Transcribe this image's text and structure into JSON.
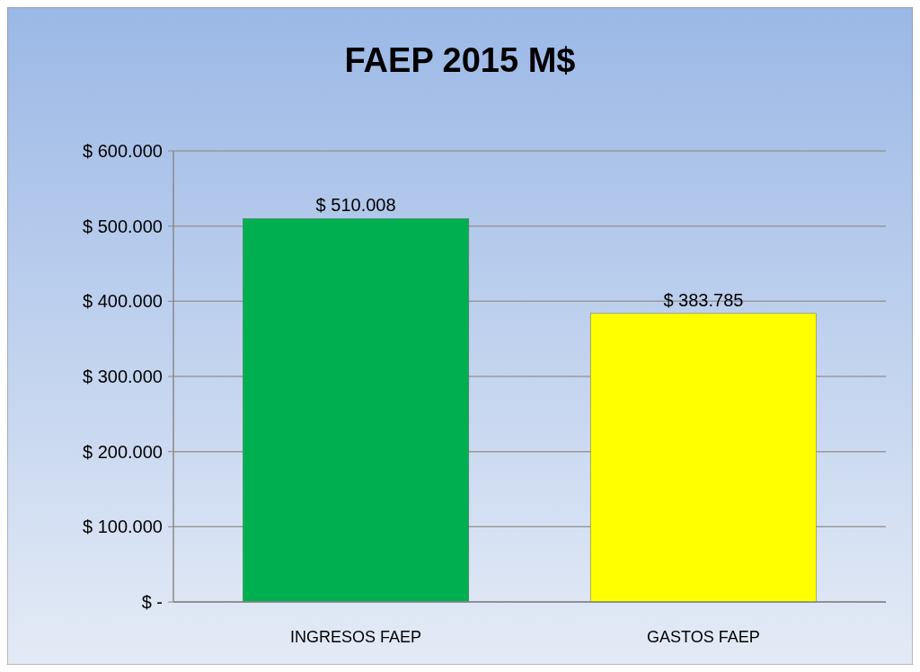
{
  "chart_data": {
    "type": "bar",
    "title": "FAEP 2015 M$",
    "categories": [
      "INGRESOS FAEP",
      "GASTOS FAEP"
    ],
    "values": [
      510008,
      383785
    ],
    "colors": [
      "#00b050",
      "#ffff00"
    ],
    "value_labels": [
      "$ 510.008",
      "$ 383.785"
    ],
    "ylim": [
      0,
      600000
    ],
    "yticks": [
      {
        "value": 0,
        "label": "$ -"
      },
      {
        "value": 100000,
        "label": "$ 100.000"
      },
      {
        "value": 200000,
        "label": "$ 200.000"
      },
      {
        "value": 300000,
        "label": "$ 300.000"
      },
      {
        "value": 400000,
        "label": "$ 400.000"
      },
      {
        "value": 500000,
        "label": "$ 500.000"
      },
      {
        "value": 600000,
        "label": "$ 600.000"
      }
    ],
    "grid": true
  }
}
